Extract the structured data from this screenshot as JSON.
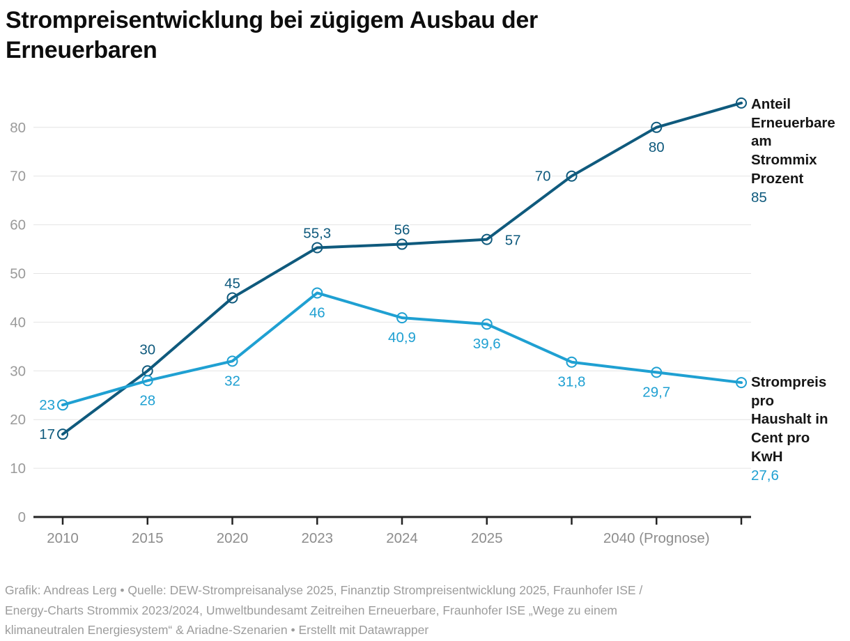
{
  "title_lines": [
    "Strompreisentwicklung bei zügigem Ausbau der",
    "Erneuerbaren"
  ],
  "footer": {
    "lines": [
      "Grafik: Andreas Lerg • Quelle: DEW-Strompreisanalyse 2025, Finanztip Strompreisentwicklung 2025, Fraunhofer ISE /",
      "Energy-Charts Strommix 2023/2024, Umweltbundesamt Zeitreihen Erneuerbare, Fraunhofer ISE „Wege zu einem",
      "klimaneutralen Energiesystem“ & Ariadne-Szenarien • Erstellt mit Datawrapper"
    ]
  },
  "chart_data": {
    "type": "line",
    "title": "Strompreisentwicklung bei zügigem Ausbau der Erneuerbaren",
    "x_tick_labels": [
      "2010",
      "2015",
      "2020",
      "2023",
      "2024",
      "2025",
      "",
      "2040 (Prognose)",
      ""
    ],
    "y_ticks": [
      0,
      10,
      20,
      30,
      40,
      50,
      60,
      70,
      80
    ],
    "ylim": [
      0,
      85
    ],
    "grid": true,
    "legend_position": "right-end-labels",
    "colors": {
      "grid": "#e4e4e4",
      "axis": "#232323",
      "y_tick_label": "#9a9a9a",
      "x_tick_label": "#8d8d8d",
      "footer_text": "#9c9c9c"
    },
    "series": [
      {
        "name": "Anteil Erneuerbare am Strommix Prozent",
        "color": "#0f5a7d",
        "values": [
          17,
          30,
          45,
          55.3,
          56,
          57,
          70,
          80,
          85
        ],
        "point_labels": [
          "17",
          "30",
          "45",
          "55,3",
          "56",
          "57",
          "70",
          "80",
          ""
        ],
        "label_placements": [
          "left",
          "above-far",
          "above",
          "above",
          "above",
          "right",
          "left-far",
          "below",
          ""
        ],
        "end_label": {
          "lines": [
            "Anteil",
            "Erneuerbare",
            "am",
            "Strommix",
            "Prozent"
          ],
          "value": "85"
        }
      },
      {
        "name": "Strompreis pro Haushalt in Cent pro KwH",
        "color": "#1fa0d2",
        "values": [
          23,
          28,
          32,
          46,
          40.9,
          39.6,
          31.8,
          29.7,
          27.6
        ],
        "point_labels": [
          "23",
          "28",
          "32",
          "46",
          "40,9",
          "39,6",
          "31,8",
          "29,7",
          ""
        ],
        "label_placements": [
          "left",
          "below",
          "below",
          "below",
          "below",
          "below",
          "below",
          "below",
          ""
        ],
        "end_label": {
          "lines": [
            "Strompreis",
            "pro",
            "Haushalt in",
            "Cent pro",
            "KwH"
          ],
          "value": "27,6"
        }
      }
    ]
  }
}
